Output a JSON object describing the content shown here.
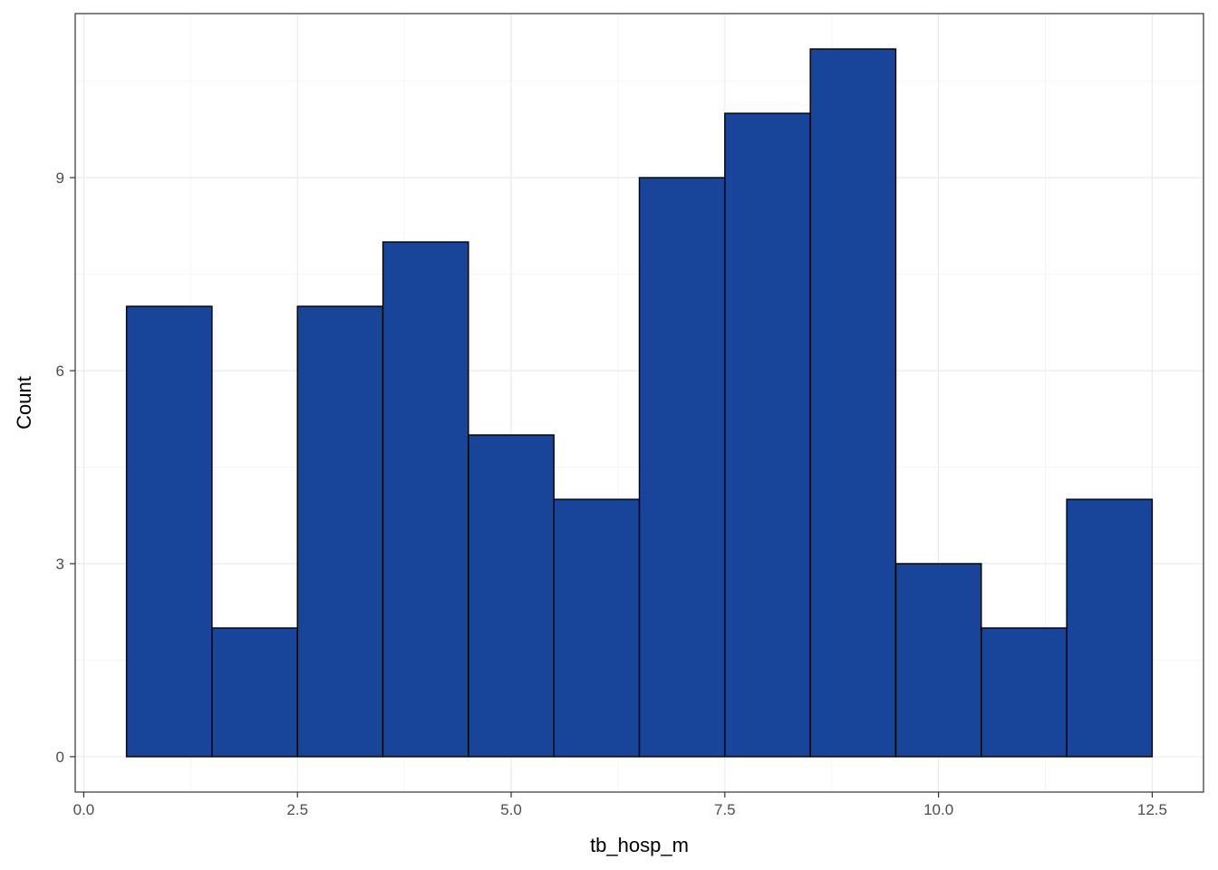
{
  "chart_data": {
    "type": "bar",
    "subtype": "histogram",
    "xlabel": "tb_hosp_m",
    "ylabel": "Count",
    "xlim": [
      -0.1,
      13.1
    ],
    "ylim": [
      -0.55,
      11.55
    ],
    "x_ticks": [
      0.0,
      2.5,
      5.0,
      7.5,
      10.0,
      12.5
    ],
    "x_tick_labels": [
      "0.0",
      "2.5",
      "5.0",
      "7.5",
      "10.0",
      "12.5"
    ],
    "y_ticks": [
      0,
      3,
      6,
      9
    ],
    "y_tick_labels": [
      "0",
      "3",
      "6",
      "9"
    ],
    "bins": [
      {
        "x0": 0.5,
        "x1": 1.5,
        "count": 7
      },
      {
        "x0": 1.5,
        "x1": 2.5,
        "count": 2
      },
      {
        "x0": 2.5,
        "x1": 3.5,
        "count": 7
      },
      {
        "x0": 3.5,
        "x1": 4.5,
        "count": 8
      },
      {
        "x0": 4.5,
        "x1": 5.5,
        "count": 5
      },
      {
        "x0": 5.5,
        "x1": 6.5,
        "count": 4
      },
      {
        "x0": 6.5,
        "x1": 7.5,
        "count": 9
      },
      {
        "x0": 7.5,
        "x1": 8.5,
        "count": 10
      },
      {
        "x0": 8.5,
        "x1": 9.5,
        "count": 11
      },
      {
        "x0": 9.5,
        "x1": 10.5,
        "count": 3
      },
      {
        "x0": 10.5,
        "x1": 11.5,
        "count": 2
      },
      {
        "x0": 11.5,
        "x1": 12.5,
        "count": 4
      }
    ],
    "grid": true,
    "legend": "none",
    "colors": {
      "bar_fill": "#18449A",
      "bar_stroke": "#000000",
      "grid_major": "#EBEBEB",
      "grid_minor": "#F5F5F5",
      "panel_border": "#333333",
      "tick_text": "#4D4D4D"
    }
  }
}
